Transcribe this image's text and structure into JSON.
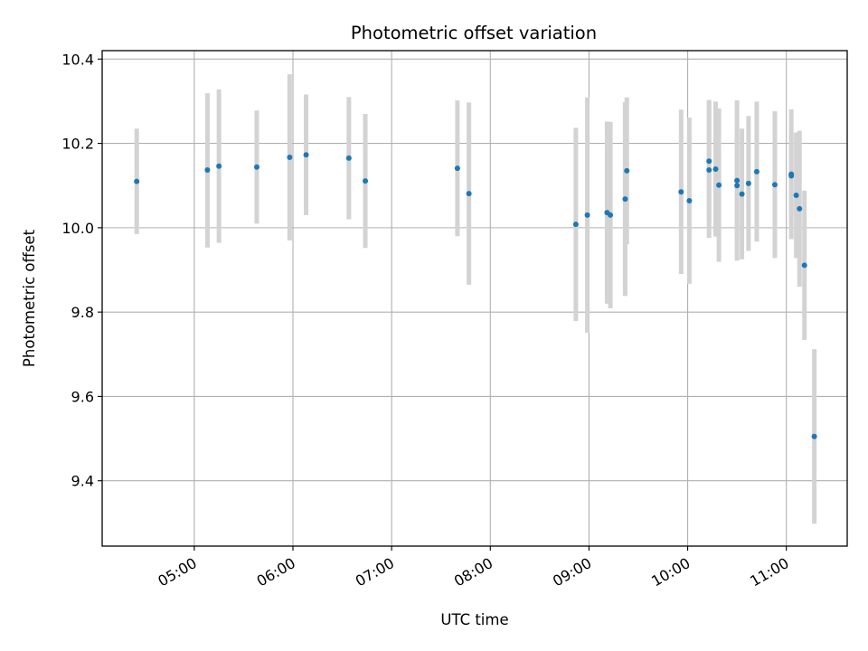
{
  "chart_data": {
    "type": "scatter",
    "title": "Photometric offset variation",
    "xlabel": "UTC time",
    "ylabel": "Photometric offset",
    "grid": true,
    "legend": "none",
    "x_tick_labels": [
      "05:00",
      "06:00",
      "07:00",
      "08:00",
      "09:00",
      "10:00",
      "11:00"
    ],
    "x_ticks": [
      "05:00",
      "06:00",
      "07:00",
      "08:00",
      "09:00",
      "10:00",
      "11:00"
    ],
    "xlim": [
      "04:04",
      "11:37"
    ],
    "y_ticks": [
      9.4,
      9.6,
      9.8,
      10.0,
      10.2,
      10.4
    ],
    "y_tick_labels": [
      "9.4",
      "9.6",
      "9.8",
      "10.0",
      "10.2",
      "10.4"
    ],
    "ylim": [
      9.245,
      10.42
    ],
    "colors": {
      "marker": "#1f77b4",
      "errorbar": "#d3d3d3",
      "grid": "#b0b0b0"
    },
    "points": [
      {
        "x": "04:25",
        "y": 10.11,
        "err_low": 0.125,
        "err_high": 0.125
      },
      {
        "x": "05:08",
        "y": 10.137,
        "err_low": 0.184,
        "err_high": 0.182
      },
      {
        "x": "05:15",
        "y": 10.146,
        "err_low": 0.182,
        "err_high": 0.182
      },
      {
        "x": "05:38",
        "y": 10.144,
        "err_low": 0.134,
        "err_high": 0.134
      },
      {
        "x": "05:58",
        "y": 10.167,
        "err_low": 0.197,
        "err_high": 0.197
      },
      {
        "x": "06:08",
        "y": 10.173,
        "err_low": 0.143,
        "err_high": 0.143
      },
      {
        "x": "06:34",
        "y": 10.165,
        "err_low": 0.145,
        "err_high": 0.145
      },
      {
        "x": "06:44",
        "y": 10.111,
        "err_low": 0.159,
        "err_high": 0.159
      },
      {
        "x": "07:40",
        "y": 10.141,
        "err_low": 0.161,
        "err_high": 0.161
      },
      {
        "x": "07:47",
        "y": 10.081,
        "err_low": 0.216,
        "err_high": 0.216
      },
      {
        "x": "08:52",
        "y": 10.008,
        "err_low": 0.229,
        "err_high": 0.229
      },
      {
        "x": "08:59",
        "y": 10.03,
        "err_low": 0.279,
        "err_high": 0.279
      },
      {
        "x": "09:11",
        "y": 10.036,
        "err_low": 0.216,
        "err_high": 0.216
      },
      {
        "x": "09:13",
        "y": 10.03,
        "err_low": 0.221,
        "err_high": 0.221
      },
      {
        "x": "09:22",
        "y": 10.068,
        "err_low": 0.23,
        "err_high": 0.23
      },
      {
        "x": "09:23",
        "y": 10.135,
        "err_low": 0.174,
        "err_high": 0.174
      },
      {
        "x": "09:56",
        "y": 10.085,
        "err_low": 0.195,
        "err_high": 0.195
      },
      {
        "x": "10:01",
        "y": 10.064,
        "err_low": 0.197,
        "err_high": 0.197
      },
      {
        "x": "10:13",
        "y": 10.137,
        "err_low": 0.161,
        "err_high": 0.161
      },
      {
        "x": "10:13",
        "y": 10.158,
        "err_low": 0.145,
        "err_high": 0.145
      },
      {
        "x": "10:17",
        "y": 10.139,
        "err_low": 0.16,
        "err_high": 0.16
      },
      {
        "x": "10:19",
        "y": 10.101,
        "err_low": 0.182,
        "err_high": 0.182
      },
      {
        "x": "10:30",
        "y": 10.112,
        "err_low": 0.19,
        "err_high": 0.19
      },
      {
        "x": "10:30",
        "y": 10.1,
        "err_low": 0.135,
        "err_high": 0.135
      },
      {
        "x": "10:33",
        "y": 10.08,
        "err_low": 0.155,
        "err_high": 0.155
      },
      {
        "x": "10:37",
        "y": 10.105,
        "err_low": 0.16,
        "err_high": 0.16
      },
      {
        "x": "10:42",
        "y": 10.133,
        "err_low": 0.166,
        "err_high": 0.166
      },
      {
        "x": "10:53",
        "y": 10.102,
        "err_low": 0.174,
        "err_high": 0.174
      },
      {
        "x": "11:03",
        "y": 10.127,
        "err_low": 0.154,
        "err_high": 0.154
      },
      {
        "x": "11:03",
        "y": 10.123,
        "err_low": 0.1,
        "err_high": 0.1
      },
      {
        "x": "11:06",
        "y": 10.077,
        "err_low": 0.149,
        "err_high": 0.149
      },
      {
        "x": "11:08",
        "y": 10.045,
        "err_low": 0.185,
        "err_high": 0.185
      },
      {
        "x": "11:11",
        "y": 9.911,
        "err_low": 0.177,
        "err_high": 0.177
      },
      {
        "x": "11:17",
        "y": 9.505,
        "err_low": 0.207,
        "err_high": 0.207
      }
    ]
  }
}
